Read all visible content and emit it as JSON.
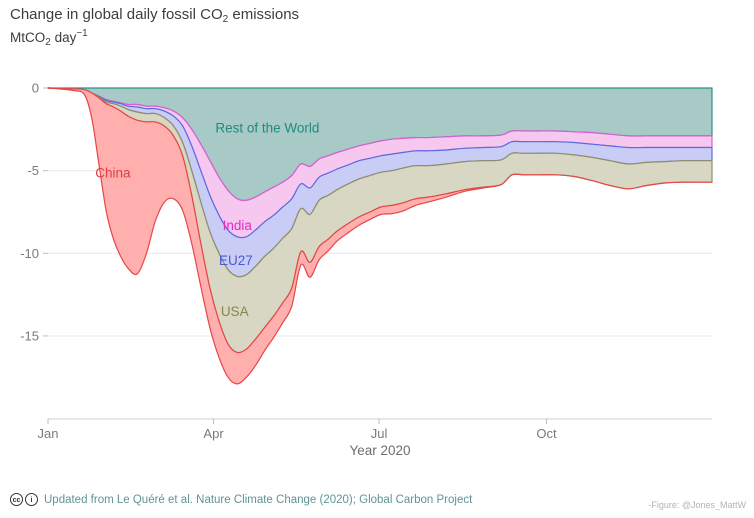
{
  "title": {
    "prefix": "Change in global daily fossil CO",
    "sub": "2",
    "suffix": " emissions"
  },
  "units": {
    "prefix": "MtCO",
    "sub": "2",
    "mid": " day",
    "sup": "−1"
  },
  "xlabel": "Year 2020",
  "caption": "Updated from Le Quéré et al. Nature Climate Change (2020); Global Carbon Project",
  "caption_icons": [
    "cc",
    "i"
  ],
  "credit": "-Figure: @Jones_MattW",
  "chart_data": {
    "type": "area",
    "stacked": true,
    "title": "Change in global daily fossil CO2 emissions",
    "ylabel": "MtCO2 day-1",
    "xlabel": "Year 2020",
    "x_unit": "day_of_year_2020",
    "ylim": [
      -19.5,
      0
    ],
    "grid": "horizontal",
    "y_ticks": [
      0,
      -5,
      -10,
      -15
    ],
    "x_ticks": [
      {
        "label": "Jan",
        "day": 1
      },
      {
        "label": "Apr",
        "day": 92
      },
      {
        "label": "Jul",
        "day": 183
      },
      {
        "label": "Oct",
        "day": 275
      }
    ],
    "x": [
      1,
      15,
      21,
      25,
      29,
      33,
      37,
      41,
      45,
      50,
      55,
      60,
      65,
      70,
      75,
      80,
      85,
      90,
      95,
      100,
      105,
      110,
      115,
      120,
      125,
      130,
      135,
      140,
      145,
      150,
      155,
      160,
      166,
      172,
      178,
      184,
      190,
      196,
      203,
      210,
      220,
      230,
      240,
      250,
      256,
      262,
      270,
      280,
      290,
      300,
      310,
      320,
      330,
      340,
      350,
      358,
      366
    ],
    "series": [
      {
        "name": "Rest of the World",
        "fill": "#a7cac6",
        "stroke": "#2e8f86",
        "label_color": "#1f8a7f",
        "label": {
          "day": 93,
          "value": -2.7
        },
        "values": [
          0,
          -0.05,
          -0.1,
          -0.3,
          -0.5,
          -0.7,
          -0.8,
          -0.9,
          -1.0,
          -1.0,
          -1.1,
          -1.1,
          -1.2,
          -1.4,
          -1.8,
          -2.5,
          -3.4,
          -4.4,
          -5.4,
          -6.2,
          -6.7,
          -6.8,
          -6.6,
          -6.3,
          -6.0,
          -5.7,
          -5.3,
          -4.6,
          -4.75,
          -4.3,
          -4.1,
          -3.9,
          -3.7,
          -3.5,
          -3.35,
          -3.2,
          -3.1,
          -3.05,
          -3.0,
          -3.0,
          -2.95,
          -2.9,
          -2.9,
          -2.85,
          -2.6,
          -2.6,
          -2.6,
          -2.6,
          -2.65,
          -2.7,
          -2.8,
          -2.9,
          -2.9,
          -2.9,
          -2.9,
          -2.9,
          -2.9
        ]
      },
      {
        "name": "India",
        "fill": "#f6c8ef",
        "stroke": "#d95fd0",
        "label_color": "#e02cc8",
        "label": {
          "day": 97,
          "value": -8.6
        },
        "values": [
          0,
          0,
          0,
          0,
          0,
          -0.05,
          -0.05,
          -0.05,
          -0.1,
          -0.15,
          -0.15,
          -0.15,
          -0.2,
          -0.3,
          -0.5,
          -1.0,
          -1.6,
          -2.1,
          -2.3,
          -2.4,
          -2.3,
          -2.2,
          -2.0,
          -1.8,
          -1.7,
          -1.5,
          -1.4,
          -1.2,
          -1.3,
          -1.1,
          -1.05,
          -1.0,
          -0.95,
          -0.9,
          -0.9,
          -0.9,
          -0.9,
          -0.85,
          -0.8,
          -0.8,
          -0.8,
          -0.75,
          -0.7,
          -0.7,
          -0.65,
          -0.65,
          -0.65,
          -0.65,
          -0.65,
          -0.7,
          -0.7,
          -0.7,
          -0.7,
          -0.7,
          -0.7,
          -0.7,
          -0.7
        ]
      },
      {
        "name": "EU27",
        "fill": "#c9cdf6",
        "stroke": "#5a6be0",
        "label_color": "#4a5ad0",
        "label": {
          "day": 95,
          "value": -10.7
        },
        "values": [
          0,
          0,
          0,
          0,
          -0.05,
          -0.1,
          -0.1,
          -0.15,
          -0.2,
          -0.3,
          -0.3,
          -0.3,
          -0.4,
          -0.6,
          -1.0,
          -1.5,
          -1.9,
          -2.2,
          -2.3,
          -2.4,
          -2.4,
          -2.3,
          -2.2,
          -2.1,
          -2.0,
          -1.9,
          -1.8,
          -1.5,
          -1.6,
          -1.4,
          -1.35,
          -1.25,
          -1.15,
          -1.1,
          -1.05,
          -1.0,
          -1.0,
          -0.95,
          -0.9,
          -0.9,
          -0.85,
          -0.8,
          -0.8,
          -0.8,
          -0.7,
          -0.7,
          -0.7,
          -0.7,
          -0.75,
          -0.8,
          -0.9,
          -1.0,
          -0.9,
          -0.85,
          -0.8,
          -0.8,
          -0.8
        ]
      },
      {
        "name": "USA",
        "fill": "#d8d7c3",
        "stroke": "#8f8f66",
        "label_color": "#85854f",
        "label": {
          "day": 96,
          "value": -13.8
        },
        "values": [
          0,
          0,
          0,
          0,
          -0.05,
          -0.1,
          -0.2,
          -0.3,
          -0.4,
          -0.5,
          -0.5,
          -0.5,
          -0.5,
          -0.6,
          -0.8,
          -1.5,
          -2.5,
          -3.4,
          -4.1,
          -4.5,
          -4.6,
          -4.5,
          -4.4,
          -4.3,
          -4.1,
          -3.9,
          -3.6,
          -2.6,
          -2.9,
          -2.8,
          -2.65,
          -2.5,
          -2.4,
          -2.3,
          -2.2,
          -2.1,
          -2.1,
          -2.1,
          -2.0,
          -1.9,
          -1.8,
          -1.7,
          -1.6,
          -1.5,
          -1.3,
          -1.3,
          -1.3,
          -1.3,
          -1.3,
          -1.4,
          -1.5,
          -1.5,
          -1.4,
          -1.3,
          -1.3,
          -1.3,
          -1.3
        ]
      },
      {
        "name": "China",
        "fill": "#ffb0ae",
        "stroke": "#e84545",
        "label_color": "#e03e3e",
        "label": {
          "day": 27,
          "value": -5.4
        },
        "values": [
          0,
          -0.1,
          -0.3,
          -1.5,
          -4.0,
          -6.5,
          -8.0,
          -8.8,
          -9.2,
          -9.3,
          -8.0,
          -6.0,
          -4.6,
          -3.8,
          -3.3,
          -2.9,
          -2.6,
          -2.4,
          -2.2,
          -2.0,
          -1.9,
          -1.7,
          -1.6,
          -1.4,
          -1.3,
          -1.2,
          -1.1,
          -0.8,
          -0.9,
          -0.8,
          -0.7,
          -0.6,
          -0.55,
          -0.5,
          -0.45,
          -0.45,
          -0.5,
          -0.5,
          -0.4,
          -0.3,
          -0.2,
          -0.1,
          -0.05,
          0,
          0,
          0,
          0,
          0,
          0,
          0,
          0,
          0,
          0,
          0,
          0,
          0,
          0
        ]
      }
    ]
  }
}
